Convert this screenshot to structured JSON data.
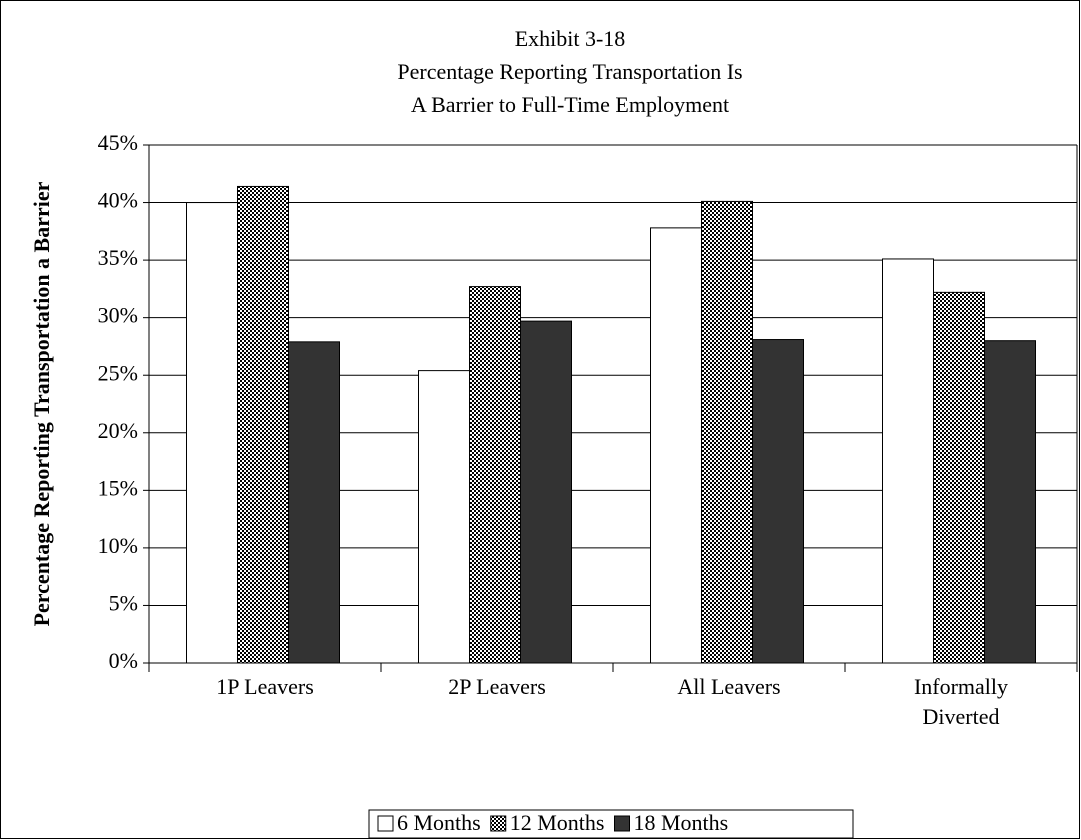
{
  "chart_data": {
    "type": "bar",
    "title": [
      "Exhibit 3-18",
      "Percentage Reporting Transportation Is",
      "A Barrier to Full-Time Employment"
    ],
    "y_label": "Percentage Reporting Transportation a Barrier",
    "categories": [
      "1P Leavers",
      "2P Leavers",
      "All Leavers",
      "Informally Diverted"
    ],
    "series": [
      {
        "name": "6 Months",
        "color": "#ffffff",
        "values": [
          40.0,
          25.4,
          37.8,
          35.1
        ]
      },
      {
        "name": "12 Months",
        "color": "#888888",
        "pattern": "checker",
        "values": [
          41.4,
          32.7,
          40.1,
          32.2
        ]
      },
      {
        "name": "18 Months",
        "color": "#333333",
        "values": [
          27.9,
          29.7,
          28.1,
          28.0
        ]
      }
    ],
    "ylim": [
      0,
      45
    ],
    "yticks": [
      {
        "value": 0,
        "label": "0%"
      },
      {
        "value": 5,
        "label": "5%"
      },
      {
        "value": 10,
        "label": "10%"
      },
      {
        "value": 15,
        "label": "15%"
      },
      {
        "value": 20,
        "label": "20%"
      },
      {
        "value": 25,
        "label": "25%"
      },
      {
        "value": 30,
        "label": "30%"
      },
      {
        "value": 35,
        "label": "35%"
      },
      {
        "value": 40,
        "label": "40%"
      },
      {
        "value": 45,
        "label": "45%"
      }
    ],
    "grid": true,
    "legend": "bottom"
  }
}
